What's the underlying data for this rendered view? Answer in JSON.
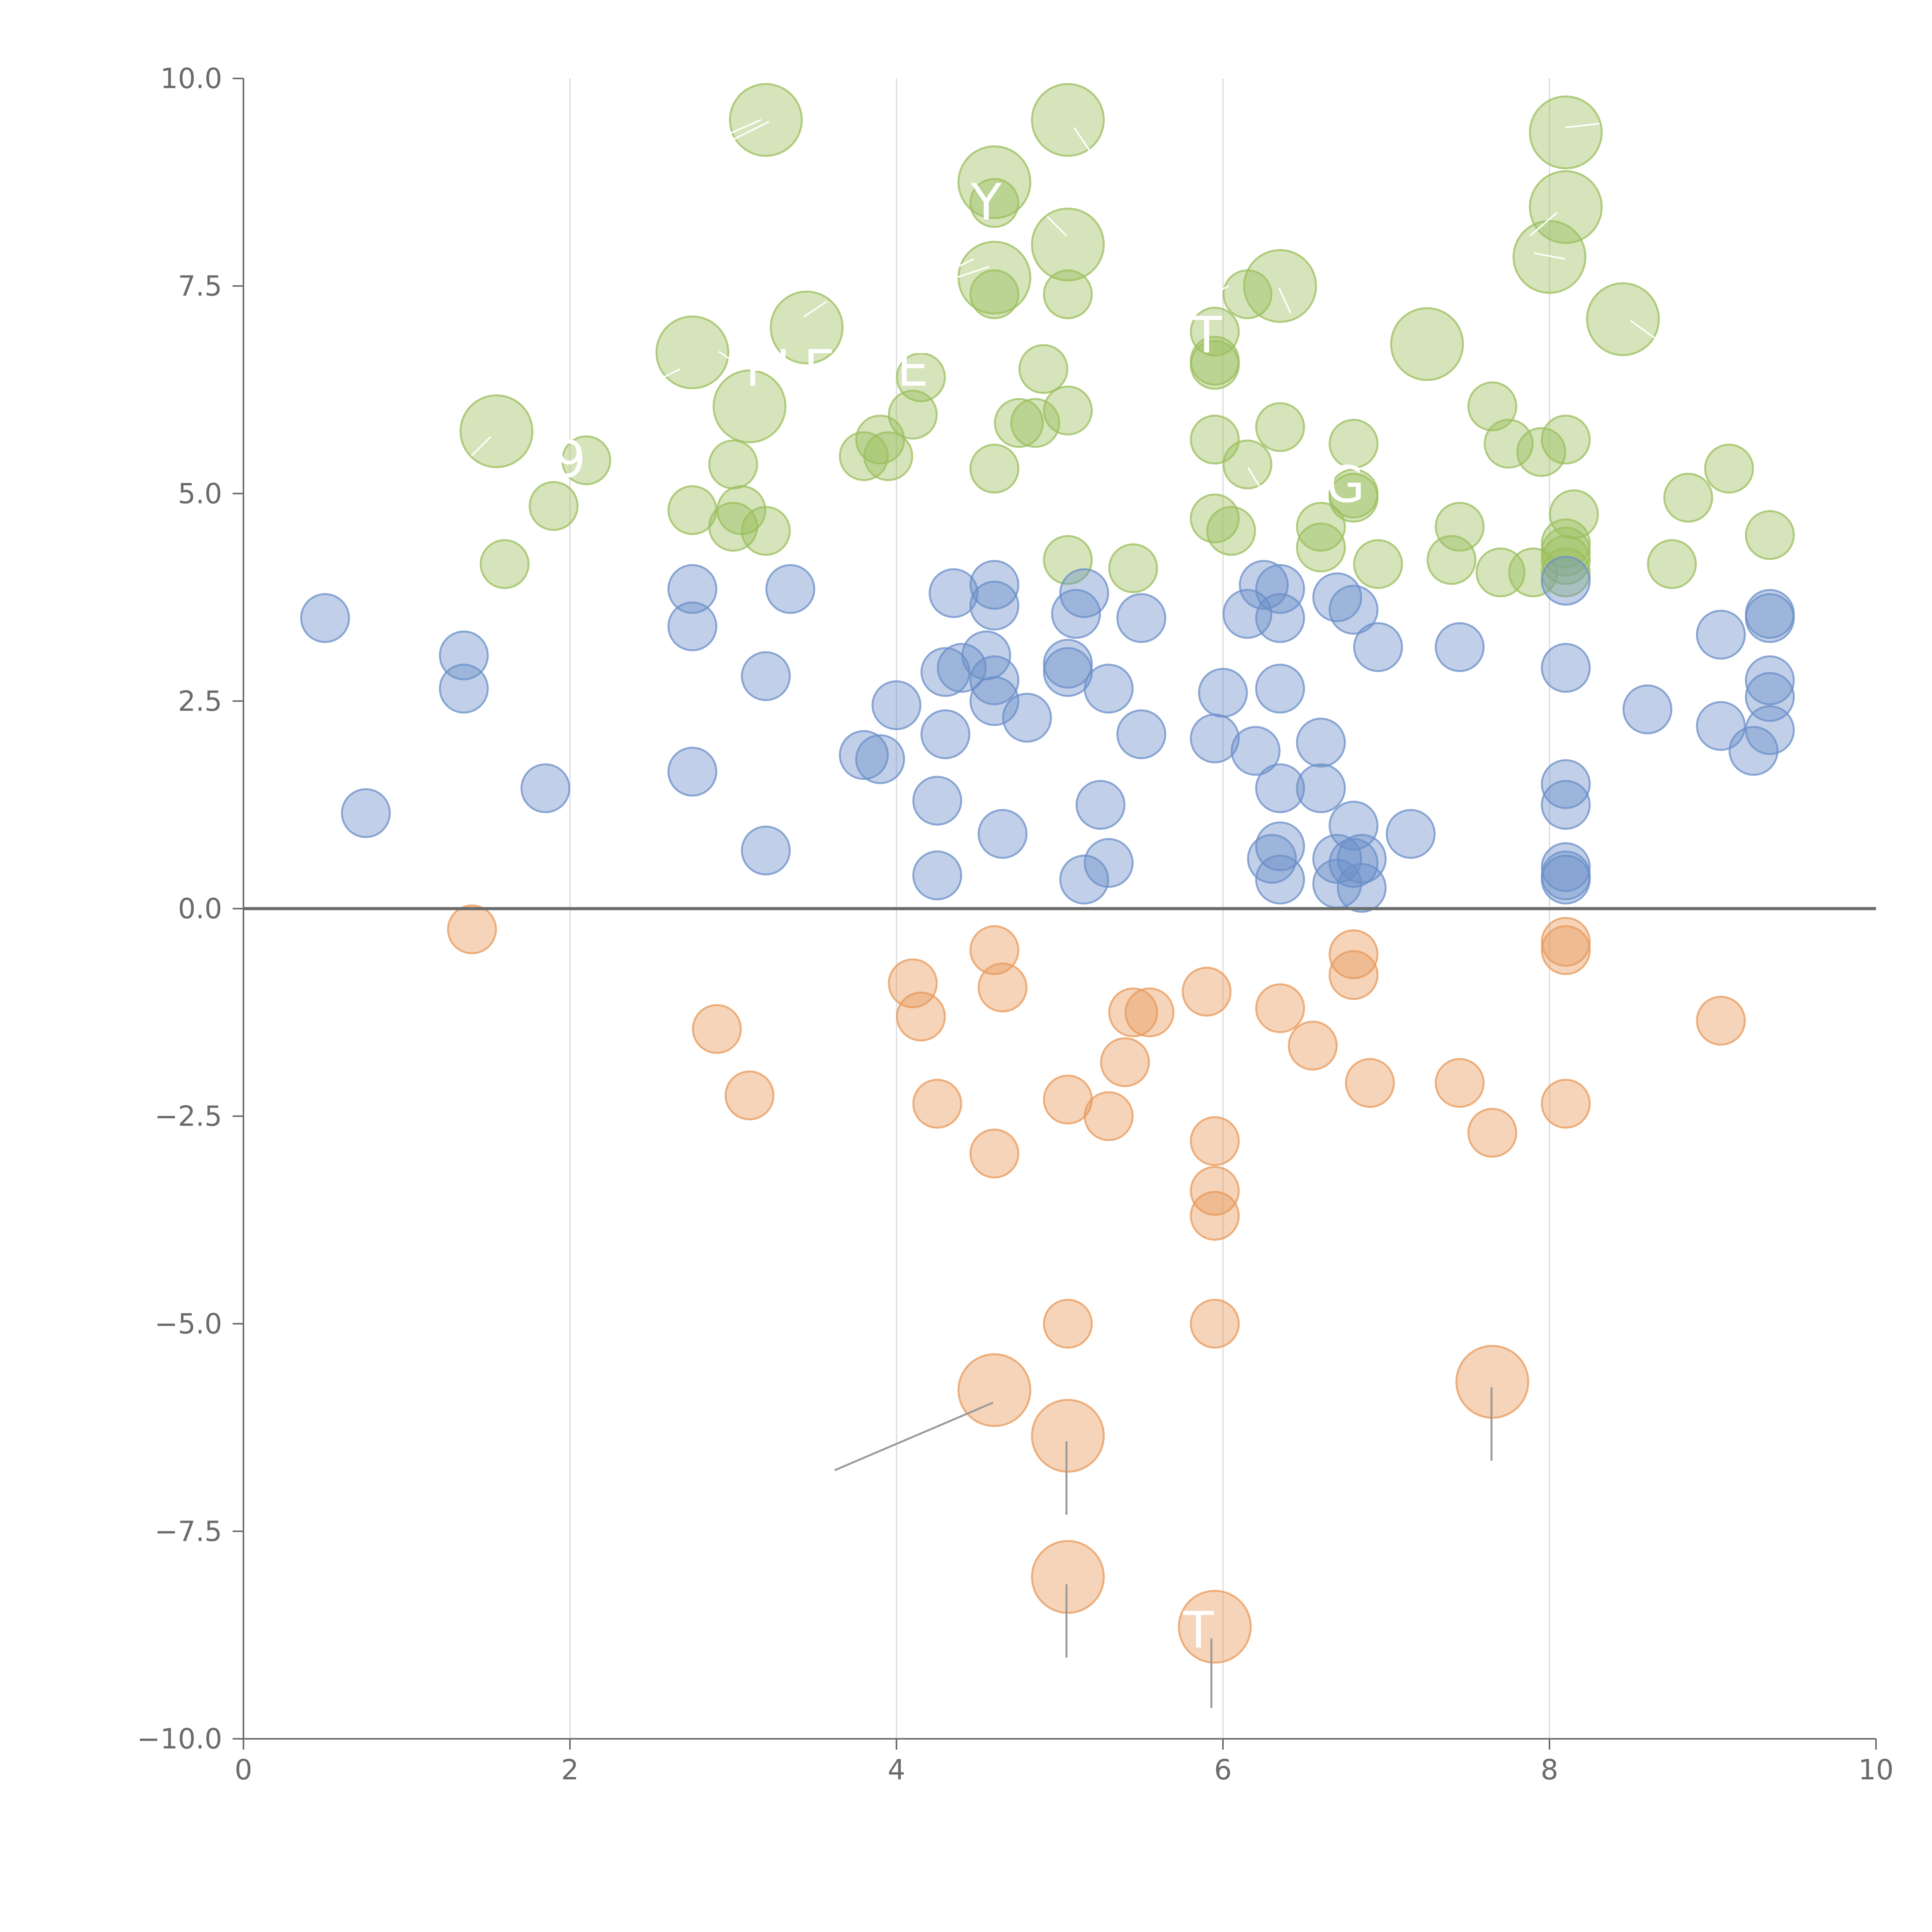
{
  "chart_data": {
    "type": "scatter",
    "title": "",
    "xlabel": "",
    "ylabel": "",
    "xlim": [
      0,
      10
    ],
    "ylim": [
      -10,
      10
    ],
    "x_ticks": [
      "0",
      "2",
      "4",
      "6",
      "8",
      "10"
    ],
    "y_ticks": [
      "10.0",
      "7.5",
      "5.0",
      "2.5",
      "0.0",
      "−2.5",
      "−5.0",
      "−7.5",
      "−10.0"
    ],
    "x_grid": [
      2,
      4,
      6,
      8
    ],
    "colors": {
      "green": "#9bbf5c",
      "blue": "#6b8fc9",
      "orange": "#e8995a"
    },
    "series": [
      {
        "name": "green",
        "color": "#9bbf5c",
        "points": [
          [
            3.2,
            9.5,
            2
          ],
          [
            5.05,
            9.5,
            2
          ],
          [
            8.1,
            9.35,
            2
          ],
          [
            4.6,
            8.75,
            2
          ],
          [
            4.6,
            8.5,
            0
          ],
          [
            5.05,
            8.0,
            2
          ],
          [
            8.1,
            8.45,
            2
          ],
          [
            8.0,
            7.85,
            2
          ],
          [
            4.6,
            7.6,
            2
          ],
          [
            4.6,
            7.4,
            0
          ],
          [
            5.05,
            7.4,
            0
          ],
          [
            6.35,
            7.5,
            2
          ],
          [
            6.15,
            7.4,
            0
          ],
          [
            8.45,
            7.1,
            2
          ],
          [
            3.45,
            7.0,
            2
          ],
          [
            2.75,
            6.7,
            2
          ],
          [
            7.25,
            6.8,
            2
          ],
          [
            5.95,
            6.95,
            0
          ],
          [
            5.95,
            6.55,
            0
          ],
          [
            5.95,
            6.6,
            0
          ],
          [
            4.15,
            6.4,
            0
          ],
          [
            4.9,
            6.5,
            0
          ],
          [
            3.1,
            6.05,
            2
          ],
          [
            4.1,
            5.95,
            0
          ],
          [
            5.05,
            6.0,
            0
          ],
          [
            4.75,
            5.85,
            0
          ],
          [
            4.85,
            5.85,
            0
          ],
          [
            1.55,
            5.75,
            2
          ],
          [
            3.9,
            5.65,
            0
          ],
          [
            3.8,
            5.45,
            0
          ],
          [
            3.95,
            5.45,
            0
          ],
          [
            2.1,
            5.4,
            0
          ],
          [
            3.0,
            5.35,
            0
          ],
          [
            4.6,
            5.3,
            0
          ],
          [
            5.95,
            5.65,
            0
          ],
          [
            6.15,
            5.35,
            0
          ],
          [
            6.35,
            5.8,
            0
          ],
          [
            6.8,
            5.6,
            0
          ],
          [
            6.8,
            5.0,
            0
          ],
          [
            6.8,
            4.95,
            0
          ],
          [
            7.65,
            6.05,
            0
          ],
          [
            7.75,
            5.6,
            0
          ],
          [
            7.95,
            5.5,
            0
          ],
          [
            8.1,
            5.65,
            0
          ],
          [
            9.1,
            5.3,
            0
          ],
          [
            1.9,
            4.85,
            0
          ],
          [
            2.75,
            4.8,
            0
          ],
          [
            3.05,
            4.8,
            0
          ],
          [
            3.0,
            4.6,
            0
          ],
          [
            3.2,
            4.55,
            0
          ],
          [
            5.95,
            4.7,
            0
          ],
          [
            6.05,
            4.55,
            0
          ],
          [
            6.6,
            4.6,
            0
          ],
          [
            6.6,
            4.35,
            0
          ],
          [
            7.45,
            4.6,
            0
          ],
          [
            8.15,
            4.75,
            0
          ],
          [
            8.1,
            4.4,
            0
          ],
          [
            8.1,
            4.3,
            0
          ],
          [
            8.1,
            4.2,
            0
          ],
          [
            8.1,
            4.05,
            0
          ],
          [
            8.85,
            4.95,
            0
          ],
          [
            9.35,
            4.5,
            0
          ],
          [
            1.6,
            4.15,
            0
          ],
          [
            5.05,
            4.2,
            0
          ],
          [
            5.45,
            4.1,
            0
          ],
          [
            6.95,
            4.15,
            0
          ],
          [
            7.4,
            4.2,
            0
          ],
          [
            7.7,
            4.05,
            0
          ],
          [
            7.9,
            4.05,
            0
          ],
          [
            8.75,
            4.15,
            0
          ]
        ]
      },
      {
        "name": "blue",
        "color": "#6b8fc9",
        "points": [
          [
            0.5,
            3.5,
            0
          ],
          [
            1.35,
            3.05,
            0
          ],
          [
            1.35,
            2.65,
            0
          ],
          [
            0.75,
            1.15,
            0
          ],
          [
            1.85,
            1.45,
            0
          ],
          [
            2.75,
            3.85,
            0
          ],
          [
            2.75,
            3.4,
            0
          ],
          [
            2.75,
            1.65,
            0
          ],
          [
            3.35,
            3.85,
            0
          ],
          [
            3.2,
            2.8,
            0
          ],
          [
            3.2,
            0.7,
            0
          ],
          [
            3.8,
            1.85,
            0
          ],
          [
            3.9,
            1.8,
            0
          ],
          [
            4.0,
            2.45,
            0
          ],
          [
            4.35,
            3.8,
            0
          ],
          [
            4.6,
            3.9,
            0
          ],
          [
            4.6,
            3.65,
            0
          ],
          [
            4.55,
            3.05,
            0
          ],
          [
            4.4,
            2.9,
            0
          ],
          [
            4.3,
            2.85,
            0
          ],
          [
            4.6,
            2.75,
            0
          ],
          [
            4.6,
            2.5,
            0
          ],
          [
            4.3,
            2.1,
            0
          ],
          [
            4.8,
            2.3,
            0
          ],
          [
            4.25,
            1.3,
            0
          ],
          [
            4.25,
            0.4,
            0
          ],
          [
            4.65,
            0.9,
            0
          ],
          [
            5.15,
            3.8,
            0
          ],
          [
            5.1,
            3.55,
            0
          ],
          [
            5.5,
            3.5,
            0
          ],
          [
            5.05,
            2.95,
            0
          ],
          [
            5.05,
            2.85,
            0
          ],
          [
            5.3,
            2.65,
            0
          ],
          [
            5.5,
            2.1,
            0
          ],
          [
            5.25,
            1.25,
            0
          ],
          [
            5.3,
            0.55,
            0
          ],
          [
            5.15,
            0.35,
            0
          ],
          [
            6.25,
            3.9,
            0
          ],
          [
            6.35,
            3.85,
            0
          ],
          [
            6.15,
            3.55,
            0
          ],
          [
            6.35,
            3.5,
            0
          ],
          [
            6.0,
            2.6,
            0
          ],
          [
            6.35,
            2.65,
            0
          ],
          [
            5.95,
            2.05,
            0
          ],
          [
            6.2,
            1.9,
            0
          ],
          [
            6.35,
            1.45,
            0
          ],
          [
            6.6,
            2.0,
            0
          ],
          [
            6.6,
            1.45,
            0
          ],
          [
            6.35,
            0.75,
            0
          ],
          [
            6.3,
            0.6,
            0
          ],
          [
            6.35,
            0.35,
            0
          ],
          [
            6.7,
            3.75,
            0
          ],
          [
            6.8,
            3.6,
            0
          ],
          [
            6.95,
            3.15,
            0
          ],
          [
            6.8,
            1.0,
            0
          ],
          [
            6.7,
            0.6,
            0
          ],
          [
            6.8,
            0.55,
            0
          ],
          [
            6.85,
            0.6,
            0
          ],
          [
            6.7,
            0.3,
            0
          ],
          [
            6.85,
            0.25,
            0
          ],
          [
            7.15,
            0.9,
            0
          ],
          [
            7.45,
            3.15,
            0
          ],
          [
            8.1,
            3.95,
            0
          ],
          [
            8.1,
            2.9,
            0
          ],
          [
            8.1,
            1.5,
            0
          ],
          [
            8.1,
            1.25,
            0
          ],
          [
            8.1,
            0.5,
            0
          ],
          [
            8.1,
            0.4,
            0
          ],
          [
            8.1,
            0.35,
            0
          ],
          [
            8.6,
            2.4,
            0
          ],
          [
            9.05,
            3.3,
            0
          ],
          [
            9.05,
            2.2,
            0
          ],
          [
            9.25,
            1.9,
            0
          ],
          [
            9.35,
            3.55,
            0
          ],
          [
            9.35,
            3.5,
            0
          ],
          [
            9.35,
            2.75,
            0
          ],
          [
            9.35,
            2.55,
            0
          ],
          [
            9.35,
            2.15,
            0
          ]
        ]
      },
      {
        "name": "orange",
        "color": "#e8995a",
        "points": [
          [
            1.4,
            -0.25,
            0
          ],
          [
            2.9,
            -1.45,
            0
          ],
          [
            3.1,
            -2.25,
            0
          ],
          [
            4.1,
            -0.9,
            0
          ],
          [
            4.15,
            -1.3,
            0
          ],
          [
            4.25,
            -2.35,
            0
          ],
          [
            4.6,
            -0.5,
            0
          ],
          [
            4.65,
            -0.95,
            0
          ],
          [
            4.6,
            -2.95,
            0
          ],
          [
            5.05,
            -2.3,
            0
          ],
          [
            5.3,
            -2.5,
            0
          ],
          [
            5.4,
            -1.85,
            0
          ],
          [
            5.45,
            -1.25,
            0
          ],
          [
            5.55,
            -1.25,
            0
          ],
          [
            5.9,
            -1.0,
            0
          ],
          [
            5.95,
            -2.8,
            0
          ],
          [
            5.95,
            -3.4,
            0
          ],
          [
            5.95,
            -3.7,
            0
          ],
          [
            5.95,
            -5.0,
            0
          ],
          [
            5.05,
            -5.0,
            0
          ],
          [
            6.35,
            -1.2,
            0
          ],
          [
            6.55,
            -1.65,
            0
          ],
          [
            6.8,
            -0.55,
            0
          ],
          [
            6.8,
            -0.8,
            0
          ],
          [
            6.9,
            -2.1,
            0
          ],
          [
            7.45,
            -2.1,
            0
          ],
          [
            7.65,
            -2.7,
            0
          ],
          [
            8.1,
            -0.4,
            0
          ],
          [
            8.1,
            -0.5,
            0
          ],
          [
            8.1,
            -2.35,
            0
          ],
          [
            9.05,
            -1.35,
            0
          ],
          [
            4.6,
            -5.8,
            2
          ],
          [
            5.05,
            -6.35,
            2
          ],
          [
            7.65,
            -5.7,
            2
          ],
          [
            5.05,
            -8.05,
            2
          ],
          [
            5.95,
            -8.65,
            2
          ]
        ]
      }
    ],
    "annotations": [
      {
        "text": "Y",
        "x": 4.55,
        "y": 8.3
      },
      {
        "text": "T",
        "x": 5.9,
        "y": 6.7
      },
      {
        "text": "PLE",
        "x": 3.35,
        "y": 6.3
      },
      {
        "text": "E",
        "x": 4.1,
        "y": 6.3
      },
      {
        "text": "9",
        "x": 2.0,
        "y": 5.2
      },
      {
        "text": "G",
        "x": 6.75,
        "y": 4.9
      },
      {
        "text": "T",
        "x": 5.85,
        "y": -8.9
      }
    ]
  }
}
